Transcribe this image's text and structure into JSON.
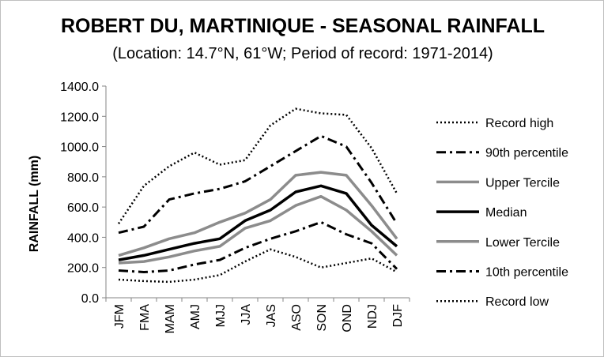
{
  "chart_data": {
    "type": "line",
    "title": "ROBERT DU, MARTINIQUE - SEASONAL RAINFALL",
    "subtitle": "(Location: 14.7°N, 61°W; Period of record: 1971-2014)",
    "xlabel": "",
    "ylabel": "RAINFALL (mm)",
    "ylim": [
      0,
      1400
    ],
    "y_ticks": [
      "0.0",
      "200.0",
      "400.0",
      "600.0",
      "800.0",
      "1000.0",
      "1200.0",
      "1400.0"
    ],
    "grid": false,
    "legend_position": "right",
    "categories": [
      "JFM",
      "FMA",
      "MAM",
      "AMJ",
      "MJJ",
      "JJA",
      "JAS",
      "ASO",
      "SON",
      "OND",
      "NDJ",
      "DJF"
    ],
    "series": [
      {
        "name": "Record high",
        "color": "#000000",
        "style": "dotted",
        "values": [
          490,
          740,
          870,
          960,
          880,
          910,
          1140,
          1250,
          1220,
          1210,
          990,
          690
        ]
      },
      {
        "name": "90th percentile",
        "color": "#000000",
        "style": "dashdot",
        "values": [
          430,
          470,
          650,
          690,
          720,
          770,
          870,
          970,
          1070,
          1000,
          760,
          490
        ]
      },
      {
        "name": "Upper Tercile",
        "color": "#8c8c8c",
        "style": "solid",
        "values": [
          280,
          330,
          390,
          430,
          500,
          560,
          650,
          810,
          830,
          810,
          610,
          390
        ]
      },
      {
        "name": "Median",
        "color": "#000000",
        "style": "solid",
        "values": [
          250,
          280,
          320,
          360,
          390,
          510,
          580,
          700,
          740,
          690,
          480,
          340
        ]
      },
      {
        "name": "Lower Tercile",
        "color": "#8c8c8c",
        "style": "solid",
        "values": [
          230,
          240,
          270,
          310,
          340,
          460,
          510,
          610,
          670,
          580,
          440,
          280
        ]
      },
      {
        "name": "10th percentile",
        "color": "#000000",
        "style": "dashdot",
        "values": [
          180,
          170,
          180,
          220,
          250,
          330,
          390,
          440,
          500,
          420,
          360,
          190
        ]
      },
      {
        "name": "Record low",
        "color": "#000000",
        "style": "dotted",
        "values": [
          120,
          110,
          105,
          120,
          150,
          240,
          320,
          270,
          200,
          230,
          260,
          170
        ]
      }
    ]
  }
}
